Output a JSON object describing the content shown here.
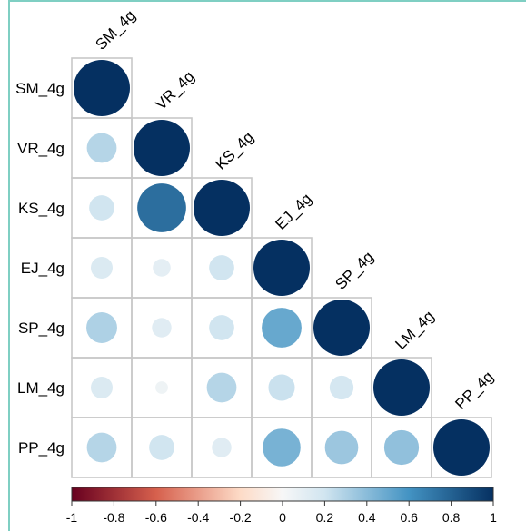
{
  "chart_data": {
    "type": "heatmap",
    "title": "",
    "variables": [
      "SM_4g",
      "VR_4g",
      "KS_4g",
      "EJ_4g",
      "SP_4g",
      "LM_4g",
      "PP_4g"
    ],
    "row_labels": [
      "SM_4g",
      "VR_4g",
      "KS_4g",
      "EJ_4g",
      "SP_4g",
      "LM_4g",
      "PP_4g"
    ],
    "col_labels": [
      "SM_4g",
      "VR_4g",
      "KS_4g",
      "EJ_4g",
      "SP_4g",
      "LM_4g",
      "PP_4g"
    ],
    "shape": "lower-triangle-circles",
    "matrix": [
      [
        1.0
      ],
      [
        0.28,
        1.0
      ],
      [
        0.2,
        0.75,
        1.0
      ],
      [
        0.15,
        0.1,
        0.2,
        1.0
      ],
      [
        0.3,
        0.12,
        0.2,
        0.5,
        1.0
      ],
      [
        0.15,
        0.05,
        0.28,
        0.22,
        0.18,
        1.0
      ],
      [
        0.28,
        0.2,
        0.12,
        0.45,
        0.35,
        0.38,
        1.0
      ]
    ],
    "colorbar": {
      "range": [
        -1,
        1
      ],
      "tick_labels": [
        "-1",
        "-0.8",
        "-0.6",
        "-0.4",
        "-0.2",
        "0",
        "0.2",
        "0.4",
        "0.6",
        "0.8",
        "1"
      ],
      "colors": {
        "neg_end": "#67001f",
        "neg_mid": "#d6604d",
        "neg_light": "#fddbc7",
        "zero": "#f7f7f7",
        "pos_light": "#d1e5f0",
        "pos_mid": "#4393c3",
        "pos_end": "#053061"
      }
    },
    "grid": true
  }
}
